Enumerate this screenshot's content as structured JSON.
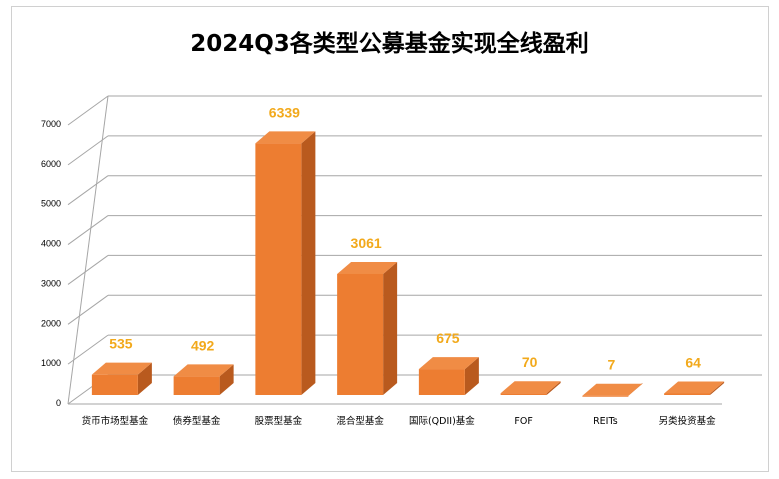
{
  "chart_data": {
    "type": "bar",
    "title": "2024Q3各类型公募基金实现全线盈利",
    "categories": [
      "货币市场型基金",
      "债券型基金",
      "股票型基金",
      "混合型基金",
      "国际(QDII)基金",
      "FOF",
      "REITs",
      "另类投资基金"
    ],
    "values": [
      535,
      492,
      6339,
      3061,
      675,
      70,
      7,
      64
    ],
    "data_labels": [
      "535",
      "492",
      "6339",
      "3061",
      "675",
      "70",
      "7",
      "64"
    ],
    "ylim": [
      0,
      7000
    ],
    "y_ticks": [
      "0",
      "1000",
      "2000",
      "3000",
      "4000",
      "5000",
      "6000",
      "7000"
    ],
    "xlabel": "",
    "ylabel": "",
    "grid": true,
    "legend": "none",
    "style": "3d-column",
    "colors": {
      "bar_front": "#ED7D31",
      "bar_side": "#B95A1E",
      "bar_top": "#F08C45",
      "data_label": "#F2A91B",
      "grid": "#A6A6A6"
    }
  }
}
